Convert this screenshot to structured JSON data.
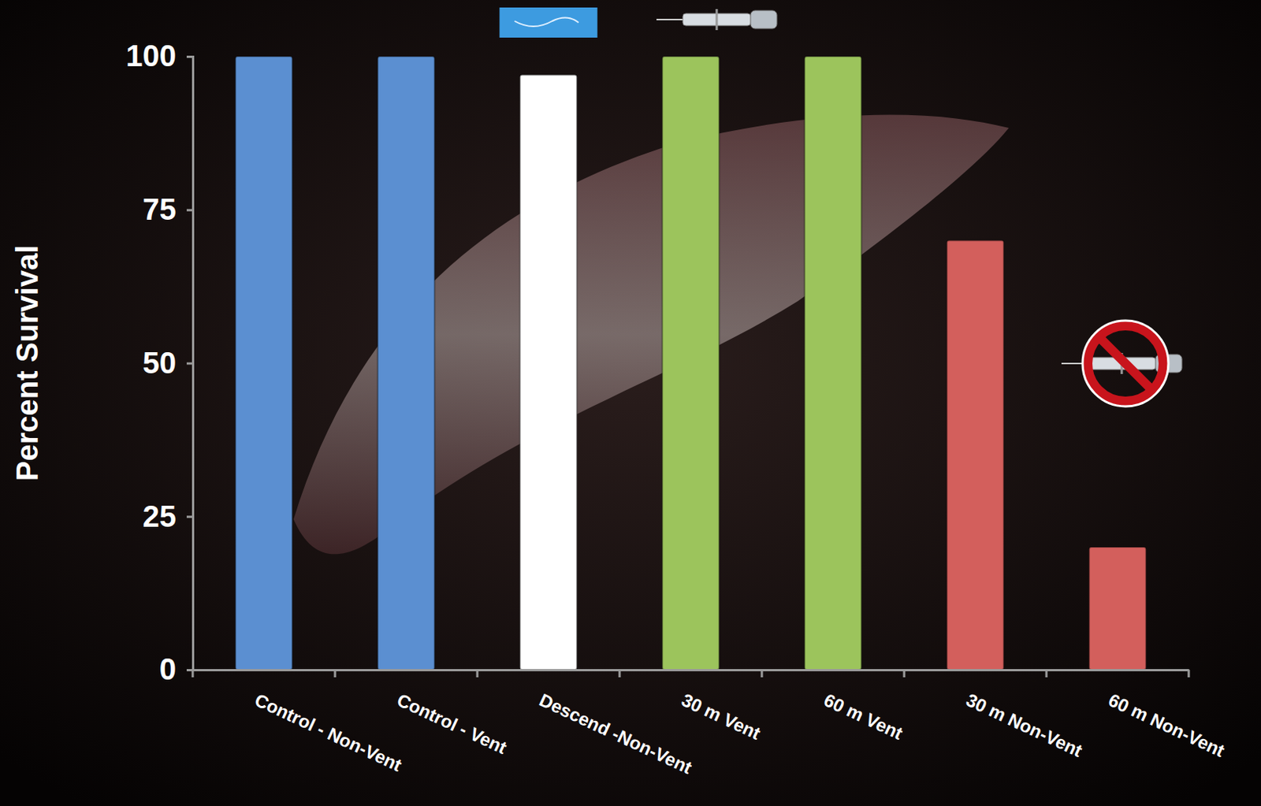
{
  "chart_data": {
    "type": "bar",
    "y_label": "Percent Survival",
    "categories": [
      "Control - Non-Vent",
      "Control - Vent",
      "Descend -Non-Vent",
      "30 m Vent",
      "60 m Vent",
      "30 m Non-Vent",
      "60 m Non-Vent"
    ],
    "values": [
      100,
      100,
      97,
      100,
      100,
      70,
      20
    ],
    "colors": [
      "#5b8fd1",
      "#5b8fd1",
      "#ffffff",
      "#9cc45c",
      "#9cc45c",
      "#d35f5c",
      "#d35f5c"
    ],
    "ylim": [
      0,
      100
    ],
    "yticks": [
      0,
      25,
      50,
      75,
      100
    ],
    "grid": false
  }
}
